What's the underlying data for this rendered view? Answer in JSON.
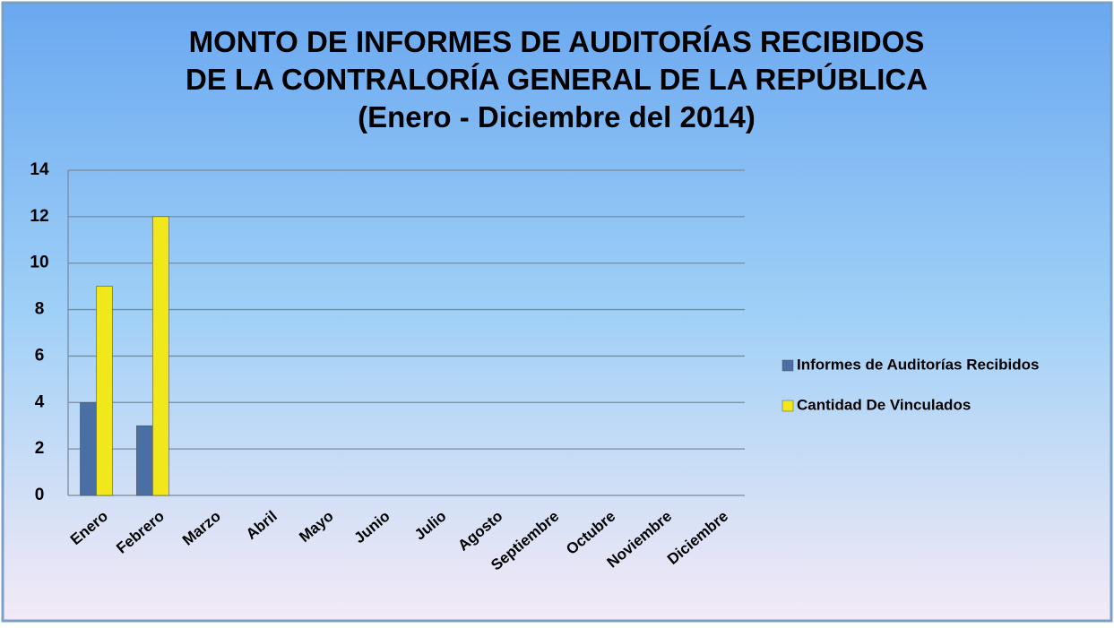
{
  "chart_data": {
    "type": "bar",
    "title": [
      "MONTO DE INFORMES DE AUDITORÍAS RECIBIDOS",
      "DE LA CONTRALORÍA GENERAL DE LA REPÚBLICA",
      "(Enero - Diciembre del 2014)"
    ],
    "categories": [
      "Enero",
      "Febrero",
      "Marzo",
      "Abril",
      "Mayo",
      "Junio",
      "Julio",
      "Agosto",
      "Septiembre",
      "Octubre",
      "Noviembre",
      "Diciembre"
    ],
    "series": [
      {
        "name": "Informes de Auditorías Recibidos",
        "color": "#4a6fa5",
        "values": [
          4,
          3,
          null,
          null,
          null,
          null,
          null,
          null,
          null,
          null,
          null,
          null
        ]
      },
      {
        "name": "Cantidad De Vinculados",
        "color": "#f0e81a",
        "values": [
          9,
          12,
          null,
          null,
          null,
          null,
          null,
          null,
          null,
          null,
          null,
          null
        ]
      }
    ],
    "ylim": [
      0,
      14
    ],
    "yticks": [
      0,
      2,
      4,
      6,
      8,
      10,
      12,
      14
    ],
    "grid": true,
    "legend": "right"
  }
}
